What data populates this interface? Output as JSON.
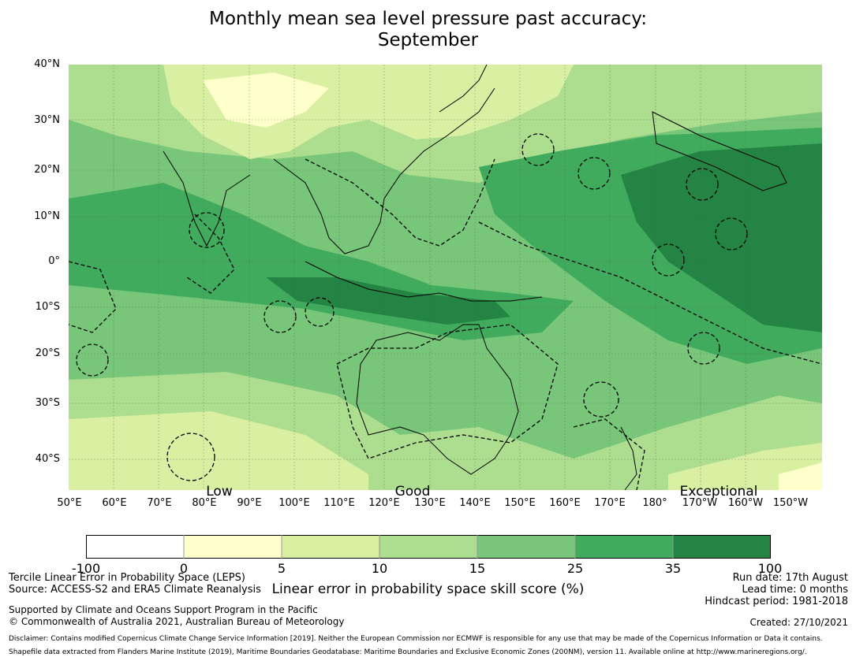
{
  "title": {
    "line1": "Monthly mean sea level pressure past accuracy:",
    "line2": "September"
  },
  "map": {
    "lat_labels": [
      "40°N",
      "30°N",
      "20°N",
      "10°N",
      "0°",
      "10°S",
      "20°S",
      "30°S",
      "40°S"
    ],
    "lon_labels": [
      "50°E",
      "60°E",
      "70°E",
      "80°E",
      "90°E",
      "100°E",
      "110°E",
      "120°E",
      "130°E",
      "140°E",
      "150°E",
      "160°E",
      "170°E",
      "180°",
      "170°W",
      "160°W",
      "150°W"
    ],
    "category_labels": [
      "Low",
      "Good",
      "Exceptional"
    ],
    "colors": {
      "c0": "#ffffff",
      "c1": "#ffffcc",
      "c2": "#d9f0a3",
      "c3": "#addd8e",
      "c4": "#78c679",
      "c5": "#41ab5d",
      "c6": "#238443"
    }
  },
  "colorbar": {
    "ticks": [
      "-100",
      "0",
      "5",
      "10",
      "15",
      "25",
      "35",
      "100"
    ],
    "colors": [
      "#ffffff",
      "#ffffcc",
      "#d9f0a3",
      "#addd8e",
      "#78c679",
      "#41ab5d",
      "#238443"
    ],
    "label": "Linear error in probability space skill score (%)"
  },
  "footer": {
    "left1": "Tercile Linear Error in Probability Space (LEPS)",
    "left2": "Source: ACCESS-S2 and ERA5 Climate Reanalysis",
    "left3": "Supported by Climate and Oceans Support Program in the Pacific",
    "left4": "© Commonwealth of Australia 2021, Australian Bureau of Meteorology",
    "right1": "Run date: 17th August",
    "right2": "Lead time: 0 months",
    "right3": "Hindcast period: 1981-2018",
    "right4": "Created: 27/10/2021",
    "disclaimer": "Disclaimer: Contains modified Copernicus Climate Change Service Information [2019]. Neither the European Commission nor ECMWF is responsible for any use that may be made of the Copernicus Information or Data it contains.",
    "shapefile": "Shapefile data extracted from Flanders Marine Institute (2019), Maritime Boundaries Geodatabase: Maritime Boundaries and Exclusive Economic Zones (200NM), version 11. Available online at http://www.marineregions.org/."
  }
}
